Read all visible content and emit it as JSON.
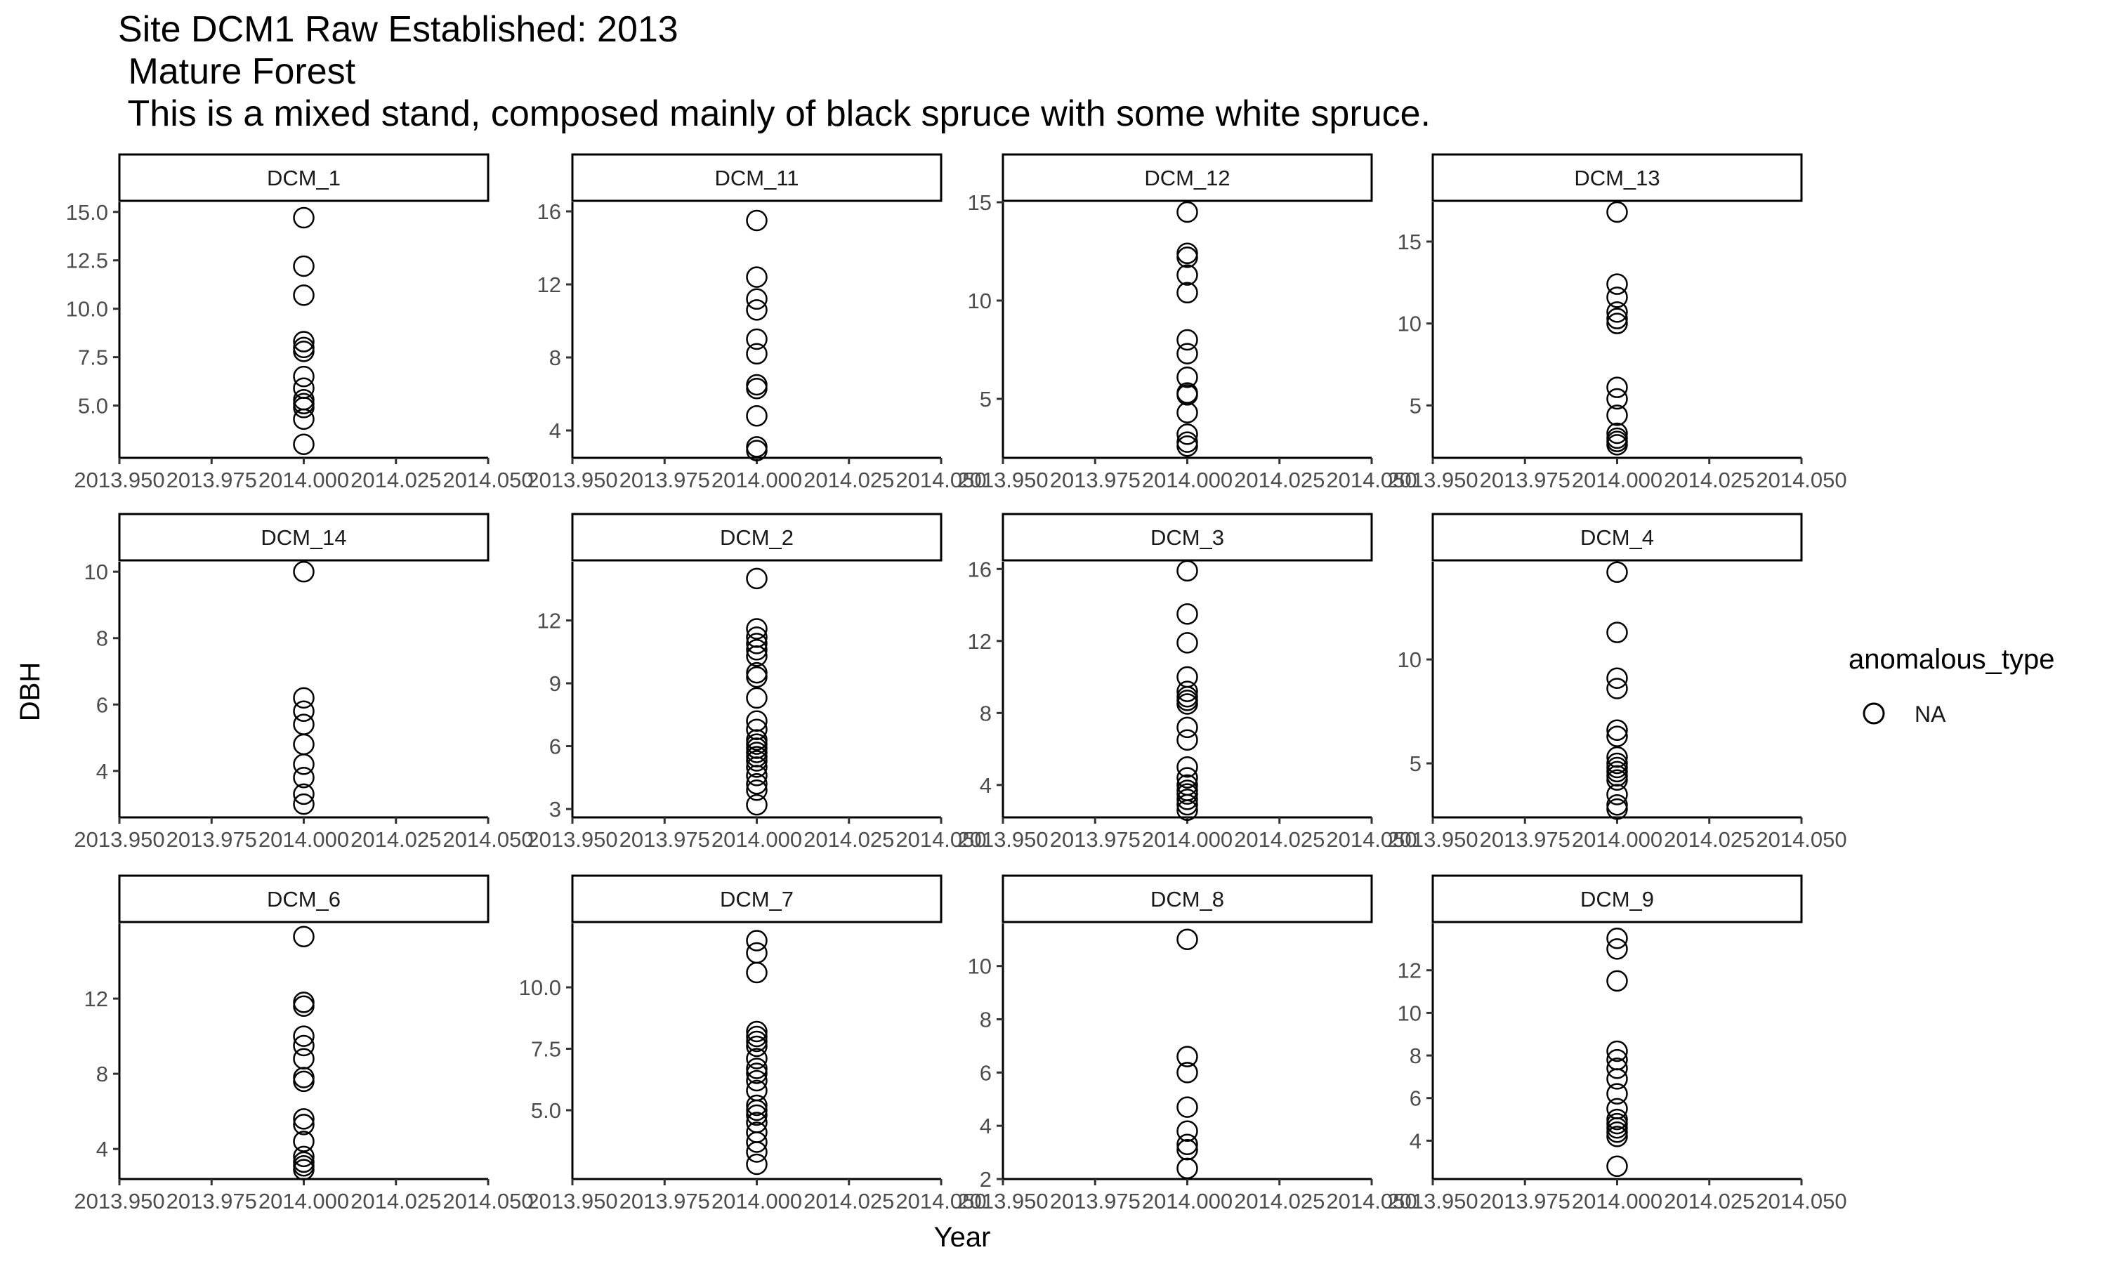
{
  "title_lines": [
    "Site DCM1 Raw Established: 2013",
    " Mature Forest",
    " This is a mixed stand, composed mainly of black spruce with some white spruce."
  ],
  "chart_data": {
    "type": "scatter",
    "xlabel": "Year",
    "ylabel": "DBH",
    "xlim": [
      2013.95,
      2014.05
    ],
    "x_ticks": [
      "2013.950",
      "2013.975",
      "2014.000",
      "2014.025",
      "2014.050"
    ],
    "legend": {
      "title": "anomalous_type",
      "entries": [
        "NA"
      ],
      "placement": "right"
    },
    "grid": false,
    "facets": [
      {
        "name": "DCM_1",
        "ylim": [
          2.3,
          15.5
        ],
        "yticks": [
          "5.0",
          "7.5",
          "10.0",
          "12.5",
          "15.0"
        ],
        "ytick_values": [
          5,
          7.5,
          10,
          12.5,
          15
        ],
        "x": 2014.0,
        "values": [
          14.7,
          12.2,
          10.7,
          8.3,
          8.0,
          7.8,
          6.5,
          5.9,
          5.3,
          5.1,
          4.9,
          4.3,
          3.0
        ]
      },
      {
        "name": "DCM_11",
        "ylim": [
          2.5,
          16.5
        ],
        "yticks": [
          "4",
          "8",
          "12",
          "16"
        ],
        "ytick_values": [
          4,
          8,
          12,
          16
        ],
        "x": 2014.0,
        "values": [
          15.5,
          12.4,
          11.2,
          10.6,
          9.0,
          8.2,
          6.5,
          6.3,
          4.8,
          3.1,
          2.9
        ]
      },
      {
        "name": "DCM_12",
        "ylim": [
          2.0,
          15.0
        ],
        "yticks": [
          "5",
          "10",
          "15"
        ],
        "ytick_values": [
          5,
          10,
          15
        ],
        "x": 2014.0,
        "values": [
          14.5,
          12.4,
          12.2,
          11.3,
          10.4,
          8.0,
          7.3,
          6.1,
          5.3,
          5.2,
          4.3,
          3.2,
          2.8,
          2.6
        ]
      },
      {
        "name": "DCM_13",
        "ylim": [
          1.8,
          17.4
        ],
        "yticks": [
          "5",
          "10",
          "15"
        ],
        "ytick_values": [
          5,
          10,
          15
        ],
        "x": 2014.0,
        "values": [
          16.8,
          12.4,
          11.6,
          10.7,
          10.3,
          10.0,
          6.1,
          5.4,
          4.4,
          3.3,
          3.0,
          2.8,
          2.6
        ]
      },
      {
        "name": "DCM_14",
        "ylim": [
          2.6,
          10.3
        ],
        "yticks": [
          "4",
          "6",
          "8",
          "10"
        ],
        "ytick_values": [
          4,
          6,
          8,
          10
        ],
        "x": 2014.0,
        "values": [
          10.0,
          6.2,
          5.8,
          5.4,
          4.8,
          4.2,
          3.8,
          3.3,
          3.0
        ]
      },
      {
        "name": "DCM_2",
        "ylim": [
          2.6,
          14.8
        ],
        "yticks": [
          "3",
          "6",
          "9",
          "12"
        ],
        "ytick_values": [
          3,
          6,
          9,
          12
        ],
        "x": 2014.0,
        "values": [
          14.0,
          11.6,
          11.2,
          10.9,
          10.6,
          10.3,
          9.5,
          9.3,
          8.3,
          7.2,
          6.8,
          6.3,
          6.1,
          5.9,
          5.7,
          5.5,
          5.3,
          5.0,
          4.6,
          4.2,
          3.9,
          3.2
        ]
      },
      {
        "name": "DCM_3",
        "ylim": [
          2.2,
          16.4
        ],
        "yticks": [
          "4",
          "8",
          "12",
          "16"
        ],
        "ytick_values": [
          4,
          8,
          12,
          16
        ],
        "x": 2014.0,
        "values": [
          15.9,
          13.5,
          11.9,
          10.0,
          9.2,
          8.9,
          8.7,
          8.5,
          7.2,
          6.5,
          5.0,
          4.4,
          4.0,
          3.7,
          3.5,
          3.2,
          2.9,
          2.6
        ]
      },
      {
        "name": "DCM_4",
        "ylim": [
          2.4,
          14.7
        ],
        "yticks": [
          "5",
          "10"
        ],
        "ytick_values": [
          5,
          10
        ],
        "x": 2014.0,
        "values": [
          14.2,
          11.3,
          9.1,
          8.6,
          6.6,
          6.3,
          5.3,
          5.0,
          4.8,
          4.6,
          4.4,
          4.2,
          3.5,
          3.0,
          2.8
        ]
      },
      {
        "name": "DCM_6",
        "ylim": [
          2.4,
          16.0
        ],
        "yticks": [
          "4",
          "8",
          "12"
        ],
        "ytick_values": [
          4,
          8,
          12
        ],
        "x": 2014.0,
        "values": [
          15.3,
          11.8,
          11.6,
          10.0,
          9.5,
          8.8,
          7.8,
          7.6,
          5.6,
          5.3,
          4.4,
          3.6,
          3.3,
          3.1,
          2.9
        ]
      },
      {
        "name": "DCM_7",
        "ylim": [
          2.2,
          12.6
        ],
        "yticks": [
          "5.0",
          "7.5",
          "10.0"
        ],
        "ytick_values": [
          5,
          7.5,
          10
        ],
        "x": 2014.0,
        "values": [
          11.9,
          11.4,
          10.6,
          8.2,
          8.0,
          7.8,
          7.6,
          7.1,
          6.7,
          6.5,
          6.2,
          5.8,
          5.2,
          5.0,
          4.8,
          4.5,
          4.1,
          3.7,
          3.3,
          2.8
        ]
      },
      {
        "name": "DCM_8",
        "ylim": [
          2.0,
          11.6
        ],
        "yticks": [
          "2",
          "4",
          "6",
          "8",
          "10"
        ],
        "ytick_values": [
          2,
          4,
          6,
          8,
          10
        ],
        "x": 2014.0,
        "values": [
          11.0,
          6.6,
          6.0,
          4.7,
          3.8,
          3.3,
          3.1,
          2.4
        ]
      },
      {
        "name": "DCM_9",
        "ylim": [
          2.2,
          14.2
        ],
        "yticks": [
          "4",
          "6",
          "8",
          "10",
          "12"
        ],
        "ytick_values": [
          4,
          6,
          8,
          10,
          12
        ],
        "x": 2014.0,
        "values": [
          13.5,
          13.0,
          11.5,
          8.2,
          7.8,
          7.4,
          6.9,
          6.2,
          5.5,
          5.0,
          4.8,
          4.6,
          4.4,
          4.2,
          2.8
        ]
      }
    ]
  }
}
